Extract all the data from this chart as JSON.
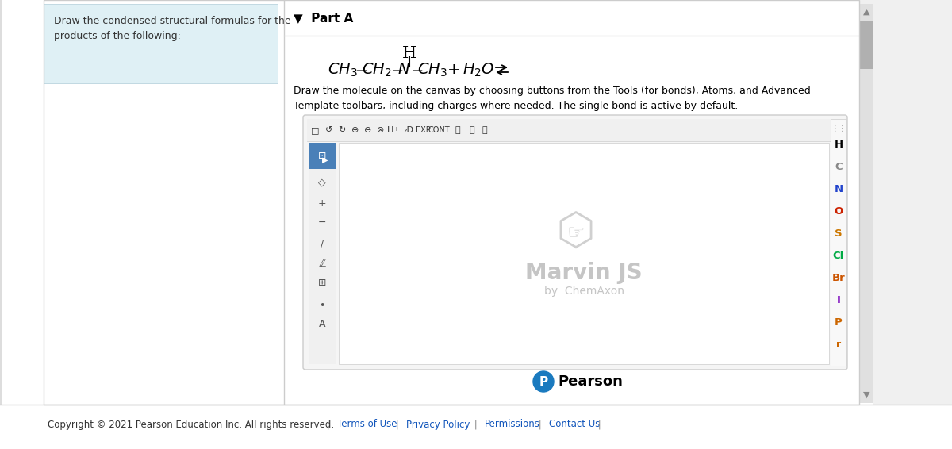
{
  "bg_color": "#f0f0f0",
  "content_bg": "#ffffff",
  "left_panel_bg": "#dff0f5",
  "left_panel_text": "Draw the condensed structural formulas for the\nproducts of the following:",
  "left_panel_text_color": "#5a3e1b",
  "part_a_label": "▼  Part A",
  "part_a_color": "#000000",
  "formula_color": "#000000",
  "marvin_text": "Marvin JS",
  "marvin_subtext": "by  ChemAxon",
  "marvin_color": "#c0c0c0",
  "pearson_logo_color": "#1a7abf",
  "pearson_text": "Pearson",
  "right_toolbar_atoms": [
    "H",
    "C",
    "N",
    "O",
    "S",
    "Cl",
    "Br",
    "I",
    "P"
  ],
  "atom_colors": {
    "H": "#000000",
    "C": "#888888",
    "N": "#2244cc",
    "O": "#cc2200",
    "S": "#cc7700",
    "Cl": "#00aa44",
    "Br": "#cc5500",
    "I": "#7700bb",
    "P": "#cc6600"
  },
  "scrollbar_bg": "#e0e0e0",
  "scrollbar_thumb": "#b0b0b0",
  "footer_text_color": "#333333",
  "footer_link_color": "#1155bb"
}
